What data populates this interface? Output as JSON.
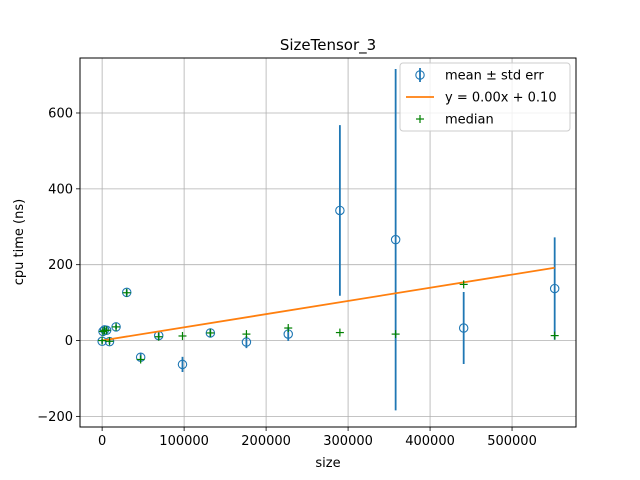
{
  "chart_data": {
    "type": "scatter",
    "title": "SizeTensor_3",
    "xlabel": "size",
    "ylabel": "cpu time (ns)",
    "xlim": [
      -27000,
      578000
    ],
    "ylim": [
      -228,
      745
    ],
    "grid": true,
    "legend_position": "top-right",
    "xticks": [
      0,
      100000,
      200000,
      300000,
      400000,
      500000
    ],
    "xtick_labels": [
      "0",
      "100000",
      "200000",
      "300000",
      "400000",
      "500000"
    ],
    "yticks": [
      -200,
      0,
      200,
      400,
      600
    ],
    "ytick_labels": [
      "−200",
      "0",
      "200",
      "400",
      "600"
    ],
    "series": [
      {
        "name": "mean ± std err",
        "kind": "errorbar",
        "color": "#1f77b4",
        "points": [
          {
            "x": 0,
            "y": -2,
            "err": 6
          },
          {
            "x": 1000,
            "y": 24,
            "err": 6
          },
          {
            "x": 3000,
            "y": 28,
            "err": 6
          },
          {
            "x": 5500,
            "y": 27,
            "err": 6
          },
          {
            "x": 9000,
            "y": -3,
            "err": 6
          },
          {
            "x": 17000,
            "y": 36,
            "err": 6
          },
          {
            "x": 30000,
            "y": 127,
            "err": 8
          },
          {
            "x": 47000,
            "y": -44,
            "err": 10
          },
          {
            "x": 69000,
            "y": 13,
            "err": 10
          },
          {
            "x": 98000,
            "y": -63,
            "err": 20
          },
          {
            "x": 132000,
            "y": 20,
            "err": 12
          },
          {
            "x": 176000,
            "y": -4,
            "err": 16
          },
          {
            "x": 227000,
            "y": 17,
            "err": 18
          },
          {
            "x": 290000,
            "y": 343,
            "err": 225
          },
          {
            "x": 358000,
            "y": 266,
            "err": 450
          },
          {
            "x": 441000,
            "y": 33,
            "err": 95
          },
          {
            "x": 552000,
            "y": 137,
            "err": 135
          }
        ]
      },
      {
        "name": "y = 0.00x + 0.10",
        "kind": "line",
        "color": "#ff7f0e",
        "points": [
          {
            "x": 0,
            "y": 0.1
          },
          {
            "x": 552000,
            "y": 192
          }
        ]
      },
      {
        "name": "median",
        "kind": "marker",
        "color": "#008000",
        "points": [
          {
            "x": 0,
            "y": 0
          },
          {
            "x": 1000,
            "y": 24
          },
          {
            "x": 3000,
            "y": 27
          },
          {
            "x": 5500,
            "y": 27
          },
          {
            "x": 9000,
            "y": -2
          },
          {
            "x": 17000,
            "y": 36
          },
          {
            "x": 30000,
            "y": 126
          },
          {
            "x": 47000,
            "y": -50
          },
          {
            "x": 69000,
            "y": 10
          },
          {
            "x": 98000,
            "y": 12
          },
          {
            "x": 132000,
            "y": 20
          },
          {
            "x": 176000,
            "y": 17
          },
          {
            "x": 227000,
            "y": 33
          },
          {
            "x": 290000,
            "y": 21
          },
          {
            "x": 358000,
            "y": 17
          },
          {
            "x": 441000,
            "y": 148
          },
          {
            "x": 552000,
            "y": 13
          }
        ]
      }
    ]
  }
}
